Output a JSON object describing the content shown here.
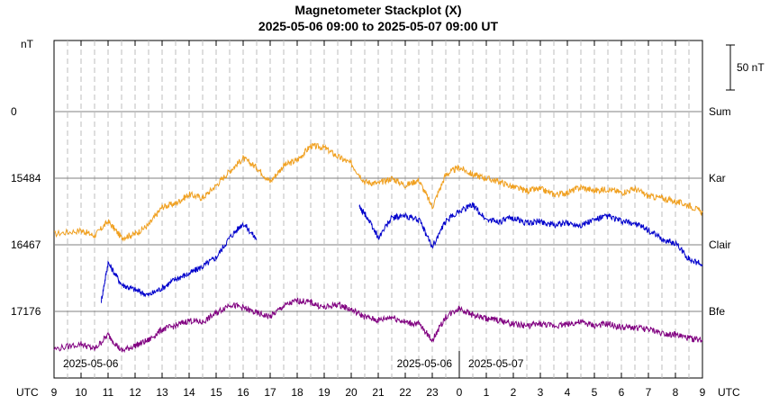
{
  "chart_data": {
    "type": "line",
    "title": "Magnetometer Stackplot (X)",
    "subtitle": "2025-05-06 09:00 to 2025-05-07 09:00 UT",
    "left_axis_unit": "nT",
    "timezone_label": "UTC",
    "x_tick_labels": [
      "9",
      "10",
      "11",
      "12",
      "13",
      "14",
      "15",
      "16",
      "17",
      "18",
      "19",
      "20",
      "21",
      "22",
      "23",
      "0",
      "1",
      "2",
      "3",
      "4",
      "5",
      "6",
      "7",
      "8",
      "9"
    ],
    "dates": [
      "2025-05-06",
      "2025-05-06",
      "2025-05-07"
    ],
    "scale_bar_label": "50 nT",
    "baselines": [
      {
        "station": "Sum",
        "value": "0"
      },
      {
        "station": "Kar",
        "value": "15484"
      },
      {
        "station": "Clair",
        "value": "16467"
      },
      {
        "station": "Bfe",
        "value": "17176"
      }
    ],
    "y_unit": "nT relative to station baseline",
    "grid": true,
    "series": [
      {
        "name": "Kar",
        "color": "#f0a020",
        "baseline_index": 1,
        "x": [
          9,
          10,
          10.5,
          11,
          11.5,
          12,
          12.5,
          13,
          13.5,
          14,
          14.5,
          15,
          15.5,
          16,
          16.5,
          17,
          17.5,
          18,
          18.5,
          19,
          19.5,
          20,
          20.5,
          21,
          21.5,
          22,
          22.5,
          23,
          23.5,
          24,
          24.5,
          25,
          25.5,
          26,
          26.5,
          27,
          27.5,
          28,
          28.5,
          29,
          29.5,
          30,
          30.5,
          31,
          31.5,
          32,
          32.5,
          33
        ],
        "y": [
          -62,
          -58,
          -64,
          -48,
          -66,
          -62,
          -52,
          -32,
          -28,
          -18,
          -22,
          -8,
          8,
          22,
          12,
          -4,
          14,
          20,
          36,
          34,
          24,
          16,
          -4,
          -6,
          0,
          -8,
          -2,
          -32,
          4,
          12,
          4,
          0,
          -4,
          -10,
          -14,
          -12,
          -18,
          -16,
          -10,
          -14,
          -12,
          -16,
          -12,
          -20,
          -22,
          -26,
          -30,
          -38
        ]
      },
      {
        "name": "Clair",
        "color": "#0000cc",
        "baseline_index": 2,
        "x": [
          10.75,
          11,
          11.5,
          12,
          12.5,
          13,
          13.5,
          14,
          14.5,
          15,
          15.5,
          16,
          16.5
        ],
        "y": [
          -62,
          -20,
          -44,
          -50,
          -56,
          -48,
          -38,
          -32,
          -24,
          -14,
          8,
          24,
          6
        ],
        "x2": [
          20.3,
          20.6,
          21,
          21.5,
          22,
          22.5,
          23,
          23.5,
          24,
          24.5,
          25,
          25.5,
          26,
          26.5,
          27,
          27.5,
          28,
          28.5,
          29,
          29.5,
          30,
          30.5,
          31,
          31.5,
          32,
          32.5,
          33
        ],
        "y2": [
          42,
          30,
          8,
          30,
          32,
          28,
          -2,
          26,
          38,
          44,
          28,
          26,
          30,
          24,
          26,
          22,
          24,
          22,
          28,
          32,
          26,
          24,
          16,
          6,
          2,
          -16,
          -22
        ]
      },
      {
        "name": "Bfe",
        "color": "#800080",
        "baseline_index": 3,
        "x": [
          9,
          10,
          10.5,
          11,
          11.5,
          12,
          12.5,
          13,
          13.5,
          14,
          14.5,
          15,
          15.5,
          16,
          16.5,
          17,
          17.5,
          18,
          18.5,
          19,
          19.5,
          20,
          20.5,
          21,
          21.5,
          22,
          22.5,
          23,
          23.5,
          24,
          24.5,
          25,
          25.5,
          26,
          26.5,
          27,
          27.5,
          28,
          28.5,
          29,
          29.5,
          30,
          30.5,
          31,
          31.5,
          32,
          32.5,
          33
        ],
        "y": [
          -42,
          -36,
          -42,
          -26,
          -44,
          -38,
          -32,
          -20,
          -16,
          -10,
          -12,
          -2,
          8,
          4,
          -2,
          -6,
          6,
          12,
          10,
          4,
          8,
          2,
          -6,
          -10,
          -6,
          -12,
          -14,
          -32,
          -6,
          4,
          -4,
          -8,
          -10,
          -14,
          -16,
          -14,
          -16,
          -14,
          -12,
          -16,
          -14,
          -18,
          -18,
          -20,
          -24,
          -26,
          -30,
          -32
        ]
      }
    ]
  }
}
